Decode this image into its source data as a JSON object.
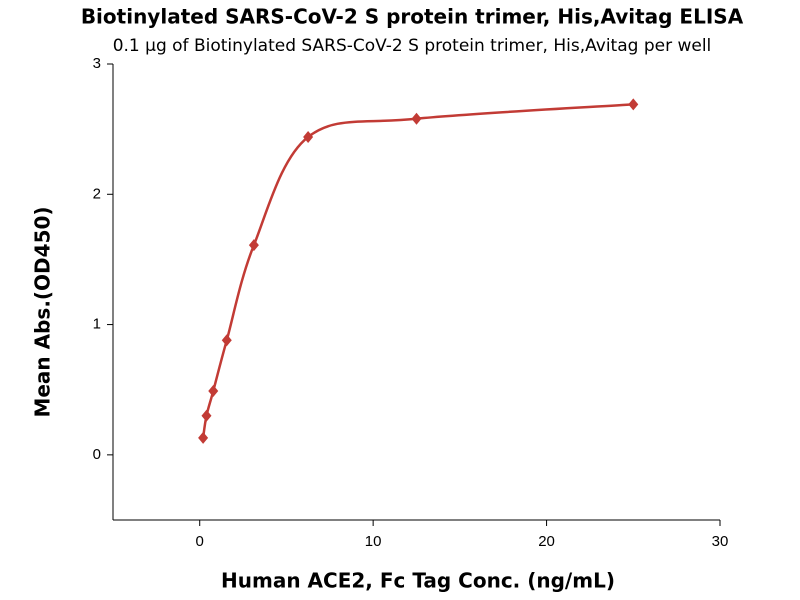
{
  "chart_data": {
    "type": "scatter",
    "title": "Biotinylated SARS-CoV-2 S protein trimer, His,Avitag ELISA",
    "subtitle": "0.1 μg of Biotinylated SARS-CoV-2 S protein trimer, His,Avitag per well",
    "x_label": "Human ACE2, Fc Tag Conc. (ng/mL)",
    "y_label": "Mean Abs.(OD450)",
    "x": [
      0.195,
      0.39,
      0.78,
      1.56,
      3.125,
      6.25,
      12.5,
      25
    ],
    "values": [
      0.13,
      0.3,
      0.49,
      0.88,
      1.61,
      2.44,
      2.58,
      2.69
    ],
    "color": "#c23b35",
    "xlim": [
      -5,
      30
    ],
    "xticks": [
      0,
      10,
      20,
      30
    ],
    "ylim": [
      -0.5,
      3
    ],
    "yticks": [
      0,
      1,
      2,
      3
    ]
  }
}
